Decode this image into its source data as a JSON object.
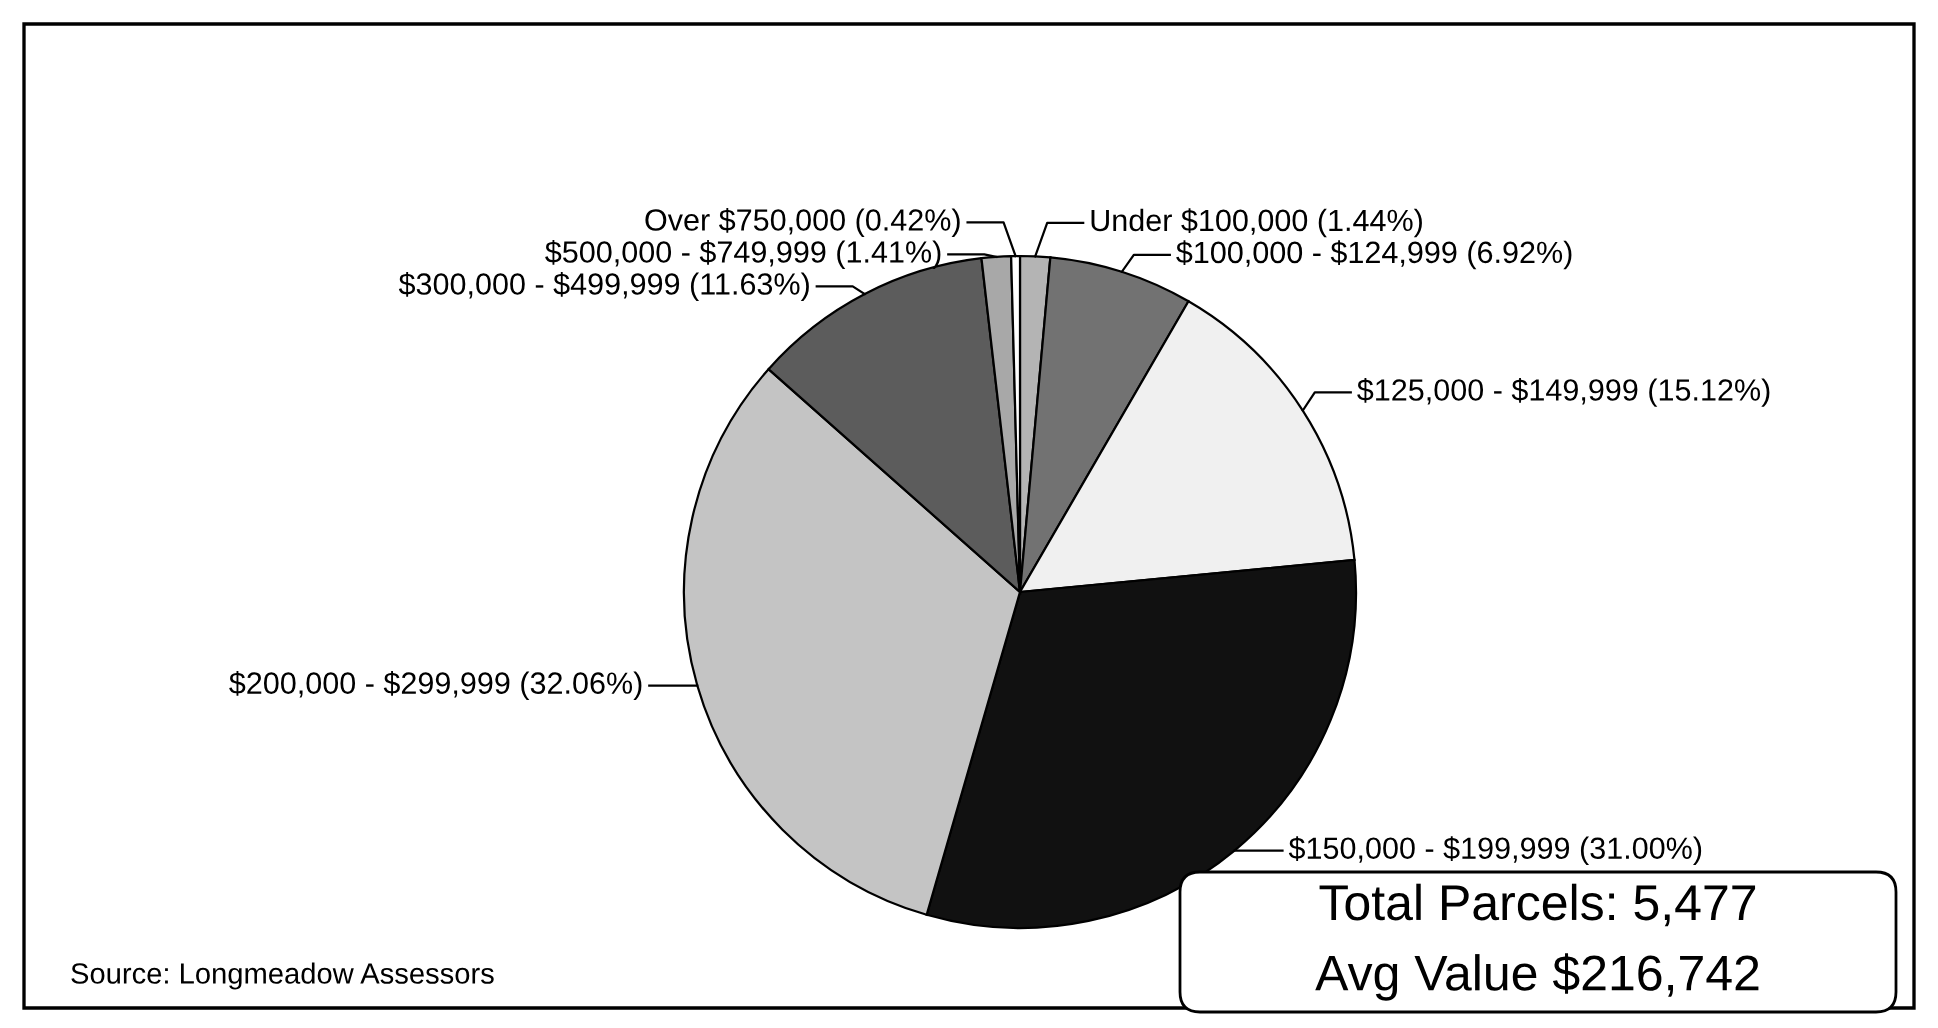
{
  "chart_data": {
    "type": "pie",
    "categories": [
      "Under $100,000",
      "$100,000 - $124,999",
      "$125,000 - $149,999",
      "$150,000 - $199,999",
      "$200,000 - $299,999",
      "$300,000 - $499,999",
      "$500,000 - $749,999",
      "Over $750,000"
    ],
    "values": [
      1.44,
      6.92,
      15.12,
      31.0,
      32.06,
      11.63,
      1.41,
      0.42
    ],
    "colors": [
      "#b4b4b4",
      "#727272",
      "#f0f0f0",
      "#111111",
      "#c4c4c4",
      "#5c5c5c",
      "#a8a8a8",
      "#ffffff"
    ],
    "value_labels": [
      "(1.44%)",
      "(6.92%)",
      "(15.12%)",
      "(31.00%)",
      "(32.06%)",
      "(11.63%)",
      "(1.41%)",
      "(0.42%)"
    ],
    "annotations": [
      "Source: Longmeadow Assessors",
      "Total Parcels: 5,477",
      "Avg Value $216,742"
    ]
  }
}
